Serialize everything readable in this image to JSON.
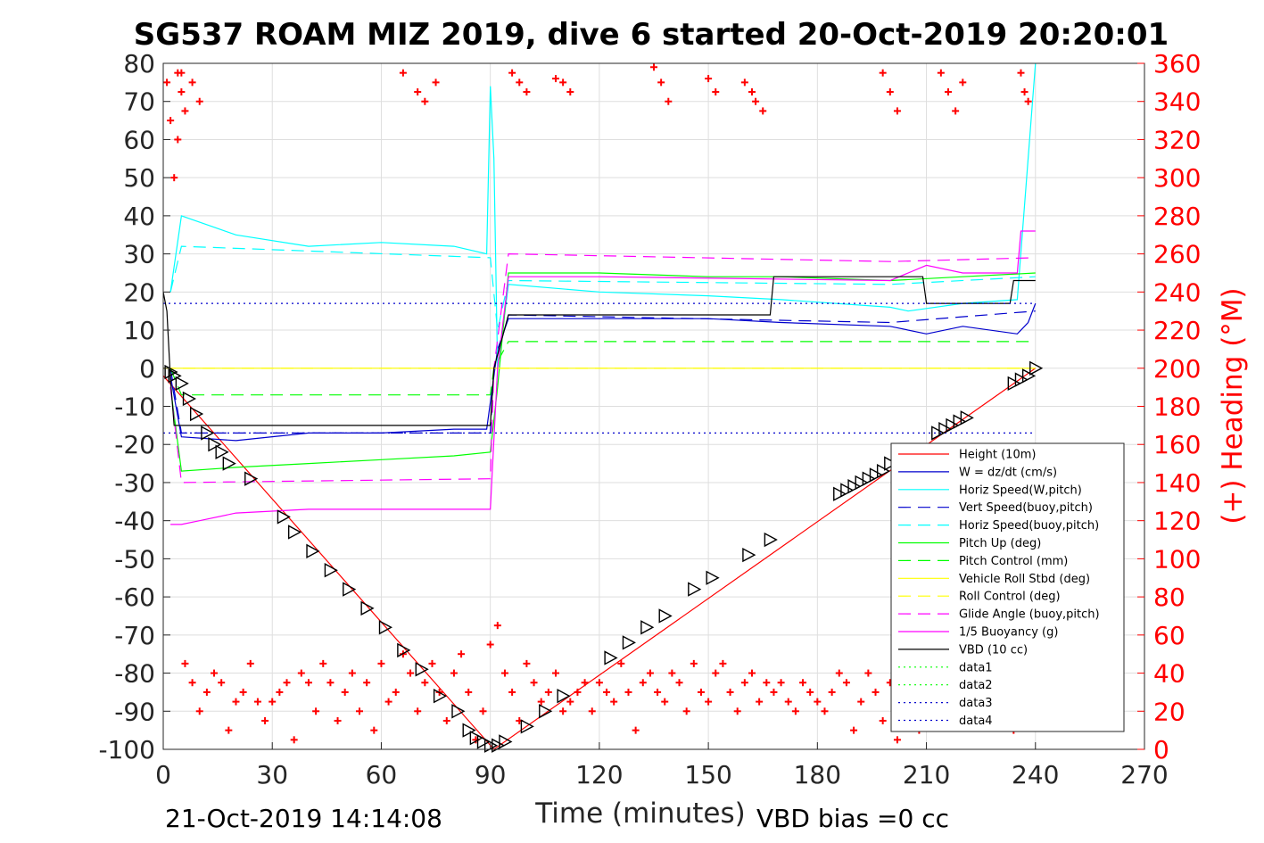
{
  "chart_data": {
    "type": "line",
    "title": "SG537 ROAM MIZ 2019, dive 6 started 20-Oct-2019 20:20:01",
    "xlabel": "Time (minutes)",
    "ylabel": "",
    "ylabel_right": "(+) Heading (°M)",
    "xlim": [
      0,
      270
    ],
    "ylim": [
      -100,
      80
    ],
    "ylim_right": [
      0,
      360
    ],
    "xticks": [
      0,
      30,
      60,
      90,
      120,
      150,
      180,
      210,
      240,
      270
    ],
    "yticks": [
      80,
      70,
      60,
      50,
      40,
      30,
      20,
      10,
      0,
      -10,
      -20,
      -30,
      -40,
      -50,
      -60,
      -70,
      -80,
      -90,
      -100
    ],
    "yticks_right": [
      360,
      340,
      320,
      300,
      280,
      260,
      240,
      220,
      200,
      180,
      160,
      140,
      120,
      100,
      80,
      60,
      40,
      20,
      0
    ],
    "grid": true,
    "legend_position": "right",
    "footer_left": "21-Oct-2019 14:14:08",
    "footer_right": "VBD bias =0 cc",
    "colors": {
      "height": "#ff0000",
      "w": "#0000cd",
      "horiz_speed_w": "#00ffff",
      "vert_speed_buoy": "#0000cd",
      "horiz_speed_buoy": "#00ffff",
      "pitch_up": "#00ff00",
      "pitch_control": "#00ff00",
      "roll": "#ffff00",
      "roll_control": "#ffff00",
      "glide_angle": "#ff00ff",
      "buoyancy": "#ff00ff",
      "vbd": "#000000",
      "heading": "#ff0000"
    },
    "series": [
      {
        "key": "height",
        "name": "Height (10m)",
        "style": "solid",
        "x": [
          0,
          91,
          240
        ],
        "y": [
          -2,
          -100,
          0
        ]
      },
      {
        "key": "w",
        "name": "W = dz/dt (cm/s)",
        "style": "solid",
        "x": [
          2,
          5,
          20,
          40,
          60,
          80,
          89,
          92,
          95,
          120,
          150,
          170,
          200,
          210,
          220,
          235,
          238,
          240
        ],
        "y": [
          -2,
          -18,
          -19,
          -17,
          -17,
          -16,
          -16,
          5,
          13,
          13,
          13,
          12,
          11,
          9,
          11,
          9,
          12,
          17
        ]
      },
      {
        "key": "horiz_speed_w",
        "name": "Horiz Speed(W,pitch)",
        "style": "solid",
        "x": [
          2,
          5,
          20,
          40,
          60,
          80,
          89,
          90,
          91,
          92,
          95,
          120,
          150,
          170,
          200,
          205,
          220,
          235,
          240
        ],
        "y": [
          20,
          40,
          35,
          32,
          33,
          32,
          30,
          74,
          55,
          0,
          22,
          20,
          19,
          18,
          16,
          15,
          17,
          18,
          80
        ]
      },
      {
        "key": "vert_speed_buoy",
        "name": "Vert Speed(buoy,pitch)",
        "style": "dashed",
        "x": [
          2,
          5,
          90,
          91,
          95,
          200,
          240
        ],
        "y": [
          0,
          -17,
          -17,
          0,
          14,
          12,
          15
        ]
      },
      {
        "key": "horiz_speed_buoy",
        "name": "Horiz Speed(buoy,pitch)",
        "style": "dashed",
        "x": [
          2,
          5,
          90,
          92,
          95,
          200,
          240
        ],
        "y": [
          20,
          32,
          29,
          10,
          23,
          22,
          24
        ]
      },
      {
        "key": "pitch_up",
        "name": "Pitch Up (deg)",
        "style": "solid",
        "x": [
          2,
          5,
          20,
          40,
          60,
          80,
          90,
          92,
          95,
          120,
          150,
          170,
          200,
          220,
          240
        ],
        "y": [
          -5,
          -27,
          -26,
          -25,
          -24,
          -23,
          -22,
          -5,
          25,
          25,
          24,
          24,
          23,
          24,
          25
        ]
      },
      {
        "key": "pitch_control",
        "name": "Pitch Control (mm)",
        "style": "dashed",
        "x": [
          2,
          5,
          90,
          91,
          95,
          240
        ],
        "y": [
          0,
          -7,
          -7,
          0,
          7,
          7
        ]
      },
      {
        "key": "roll",
        "name": "Vehicle Roll Stbd (deg)",
        "style": "solid",
        "x": [
          0,
          5,
          60,
          120,
          180,
          240
        ],
        "y": [
          0,
          0,
          0,
          0,
          0,
          0
        ]
      },
      {
        "key": "roll_control",
        "name": "Roll Control (deg)",
        "style": "dashed",
        "x": [
          0,
          240
        ],
        "y": [
          0,
          0
        ]
      },
      {
        "key": "glide_angle",
        "name": "Glide Angle (buoy,pitch)",
        "style": "dashed",
        "x": [
          2,
          5,
          90,
          91,
          95,
          200,
          240
        ],
        "y": [
          -5,
          -30,
          -29,
          0,
          30,
          28,
          29
        ]
      },
      {
        "key": "buoyancy",
        "name": "1/5 Buoyancy (g)",
        "style": "solid",
        "x": [
          2,
          5,
          10,
          20,
          40,
          60,
          80,
          90,
          92,
          95,
          120,
          200,
          210,
          220,
          235,
          236,
          240
        ],
        "y": [
          -41,
          -41,
          -40,
          -38,
          -37,
          -37,
          -37,
          -37,
          0,
          24,
          24,
          23,
          27,
          25,
          25,
          36,
          36
        ]
      },
      {
        "key": "vbd",
        "name": "VBD (10 cc)",
        "style": "solid",
        "x": [
          0,
          1,
          2,
          3,
          90,
          91,
          95,
          96,
          167,
          168,
          209,
          210,
          233,
          234,
          240
        ],
        "y": [
          20,
          15,
          -3,
          -15,
          -15,
          0,
          14,
          14,
          14,
          24,
          24,
          17,
          17,
          23,
          23
        ]
      },
      {
        "key": "data1",
        "name": "data1",
        "style": "dotted",
        "x": [],
        "y": []
      },
      {
        "key": "data2",
        "name": "data2",
        "style": "dotted",
        "x": [],
        "y": []
      },
      {
        "key": "data3",
        "name": "data3",
        "style": "dotted",
        "x": [
          0,
          240
        ],
        "y": [
          -17,
          -17
        ]
      },
      {
        "key": "data4",
        "name": "data4",
        "style": "dotted",
        "x": [
          0,
          240
        ],
        "y": [
          17,
          17
        ]
      }
    ],
    "heading": {
      "name": "Heading",
      "axis": "right",
      "marker": "+",
      "x": [
        1,
        2,
        3,
        4,
        5,
        6,
        8,
        10,
        12,
        14,
        16,
        18,
        20,
        22,
        24,
        26,
        28,
        30,
        32,
        34,
        36,
        38,
        40,
        42,
        44,
        46,
        48,
        50,
        52,
        54,
        56,
        58,
        60,
        62,
        64,
        66,
        68,
        70,
        72,
        74,
        76,
        78,
        80,
        82,
        84,
        86,
        88,
        90,
        92,
        94,
        96,
        98,
        100,
        102,
        104,
        106,
        108,
        110,
        112,
        114,
        116,
        118,
        120,
        122,
        124,
        126,
        128,
        130,
        132,
        134,
        136,
        138,
        140,
        142,
        144,
        146,
        148,
        150,
        152,
        154,
        156,
        158,
        160,
        162,
        164,
        166,
        168,
        170,
        172,
        174,
        176,
        178,
        180,
        182,
        184,
        186,
        188,
        190,
        192,
        194,
        196,
        198,
        200,
        202,
        204,
        206,
        208,
        210,
        212,
        214,
        216,
        218,
        220,
        222,
        224,
        226,
        228,
        230,
        232,
        234,
        236,
        238
      ],
      "y": [
        350,
        330,
        300,
        320,
        355,
        45,
        35,
        20,
        30,
        40,
        35,
        10,
        25,
        30,
        45,
        25,
        15,
        25,
        30,
        35,
        5,
        40,
        35,
        20,
        45,
        35,
        15,
        30,
        40,
        20,
        35,
        10,
        45,
        25,
        30,
        50,
        40,
        20,
        35,
        45,
        30,
        15,
        40,
        50,
        30,
        5,
        20,
        55,
        65,
        40,
        30,
        15,
        45,
        35,
        25,
        30,
        40,
        20,
        25,
        30,
        35,
        20,
        35,
        30,
        25,
        45,
        30,
        10,
        35,
        40,
        30,
        25,
        40,
        35,
        20,
        45,
        30,
        25,
        40,
        45,
        30,
        20,
        35,
        40,
        25,
        35,
        30,
        35,
        25,
        20,
        35,
        30,
        25,
        20,
        30,
        40,
        35,
        10,
        25,
        40,
        30,
        15,
        35,
        5,
        30,
        40,
        10,
        35,
        20,
        30,
        40,
        25,
        15,
        35,
        30,
        20,
        40,
        25,
        30,
        10,
        35,
        25
      ]
    },
    "heading_top": {
      "x": [
        4,
        5,
        6,
        8,
        10,
        66,
        70,
        72,
        75,
        96,
        98,
        100,
        108,
        110,
        112,
        135,
        137,
        139,
        150,
        152,
        160,
        162,
        163,
        165,
        198,
        200,
        202,
        214,
        216,
        218,
        220,
        236,
        237,
        238
      ],
      "y": [
        355,
        345,
        335,
        350,
        340,
        355,
        345,
        340,
        350,
        355,
        350,
        345,
        352,
        350,
        345,
        358,
        350,
        340,
        352,
        345,
        350,
        345,
        340,
        335,
        355,
        345,
        335,
        355,
        345,
        335,
        350,
        355,
        345,
        340
      ]
    },
    "vbd_markers": {
      "x": [
        2,
        3,
        5,
        7,
        9,
        12,
        14,
        16,
        18,
        24,
        33,
        36,
        41,
        46,
        51,
        56,
        61,
        66,
        71,
        76,
        81,
        84,
        86,
        88,
        90,
        92,
        94,
        100,
        105,
        110,
        123,
        128,
        133,
        138,
        146,
        151,
        161,
        167,
        186,
        188,
        190,
        192,
        194,
        196,
        198,
        200,
        213,
        215,
        217,
        219,
        221,
        234,
        236,
        238,
        240
      ],
      "y": [
        -1,
        -2,
        -4,
        -8,
        -12,
        -17,
        -20,
        -22,
        -25,
        -29,
        -39,
        -43,
        -48,
        -53,
        -58,
        -63,
        -68,
        -74,
        -79,
        -86,
        -90,
        -95,
        -97,
        -98,
        -99,
        -99,
        -98,
        -94,
        -90,
        -86,
        -76,
        -72,
        -68,
        -65,
        -58,
        -55,
        -49,
        -45,
        -33,
        -32,
        -31,
        -30,
        -29,
        -28,
        -27,
        -25,
        -17,
        -16,
        -15,
        -14,
        -13,
        -4,
        -3,
        -2,
        0
      ]
    }
  },
  "legend": {
    "items": [
      {
        "key": "height",
        "label": "Height (10m)",
        "color": "#ff0000",
        "style": "solid"
      },
      {
        "key": "w",
        "label": "W = dz/dt (cm/s)",
        "color": "#0000cd",
        "style": "solid"
      },
      {
        "key": "horiz_speed_w",
        "label": "Horiz Speed(W,pitch)",
        "color": "#00ffff",
        "style": "solid"
      },
      {
        "key": "vert_speed_buoy",
        "label": "Vert Speed(buoy,pitch)",
        "color": "#0000cd",
        "style": "dashed"
      },
      {
        "key": "horiz_speed_buoy",
        "label": "Horiz Speed(buoy,pitch)",
        "color": "#00ffff",
        "style": "dashed"
      },
      {
        "key": "pitch_up",
        "label": "Pitch Up (deg)",
        "color": "#00ff00",
        "style": "solid"
      },
      {
        "key": "pitch_control",
        "label": "Pitch Control (mm)",
        "color": "#00ff00",
        "style": "dashed"
      },
      {
        "key": "roll",
        "label": "Vehicle Roll Stbd (deg)",
        "color": "#ffff00",
        "style": "solid"
      },
      {
        "key": "roll_control",
        "label": "Roll Control (deg)",
        "color": "#ffff00",
        "style": "dashed"
      },
      {
        "key": "glide_angle",
        "label": "Glide Angle (buoy,pitch)",
        "color": "#ff00ff",
        "style": "dashed"
      },
      {
        "key": "buoyancy",
        "label": "1/5 Buoyancy (g)",
        "color": "#ff00ff",
        "style": "solid"
      },
      {
        "key": "vbd",
        "label": "VBD (10 cc)",
        "color": "#000000",
        "style": "solid"
      },
      {
        "key": "data1",
        "label": "data1",
        "color": "#00ff00",
        "style": "dotted"
      },
      {
        "key": "data2",
        "label": "data2",
        "color": "#00ff00",
        "style": "dotted"
      },
      {
        "key": "data3",
        "label": "data3",
        "color": "#0000cd",
        "style": "dotted"
      },
      {
        "key": "data4",
        "label": "data4",
        "color": "#0000cd",
        "style": "dotted"
      }
    ]
  }
}
